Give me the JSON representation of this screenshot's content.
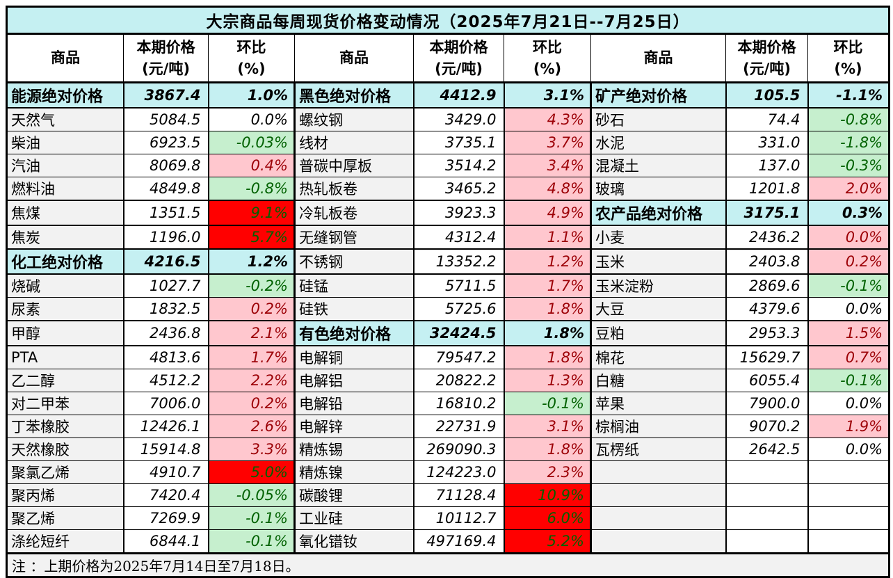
{
  "title": "大宗商品每周现货价格变动情况（2025年7月21日--7月25日）",
  "note": "注 ：上期价格为2025年7月14日至7月18日。",
  "columns": {
    "commodity": "商品",
    "price_line1": "本期价格",
    "price_line2": "(元/吨)",
    "pct_line1": "环比",
    "pct_line2": "(%)"
  },
  "colors": {
    "title_bg": "#c5f0f2",
    "section_bg": "#c5f0f2",
    "name_cell_bg": "#f2f2f2",
    "rise_bg": "#ffc7ce",
    "rise_text": "#9c0006",
    "fall_bg": "#c6efce",
    "fall_text": "#006100",
    "surge_bg": "#ff0000",
    "surge_text": "#006100",
    "border": "#000000"
  },
  "chart_data": {
    "type": "table",
    "title": "大宗商品每周现货价格变动情况（2025年7月21日--7月25日）",
    "columns": [
      "商品",
      "本期价格(元/吨)",
      "环比(%)"
    ],
    "note": "注 ：上期价格为2025年7月14日至7月18日。"
  },
  "groups": [
    {
      "rows": [
        {
          "name": "能源绝对价格",
          "price": "3867.4",
          "pct": "1.0%",
          "style": "section"
        },
        {
          "name": "天然气",
          "price": "5084.5",
          "pct": "0.0%",
          "style": "flat"
        },
        {
          "name": "柴油",
          "price": "6923.5",
          "pct": "-0.03%",
          "style": "down"
        },
        {
          "name": "汽油",
          "price": "8069.8",
          "pct": "0.4%",
          "style": "up"
        },
        {
          "name": "燃料油",
          "price": "4849.8",
          "pct": "-0.8%",
          "style": "down"
        },
        {
          "name": "焦煤",
          "price": "1351.5",
          "pct": "9.1%",
          "style": "hot"
        },
        {
          "name": "焦炭",
          "price": "1196.0",
          "pct": "5.7%",
          "style": "hot"
        },
        {
          "name": "化工绝对价格",
          "price": "4216.5",
          "pct": "1.2%",
          "style": "section"
        },
        {
          "name": "烧碱",
          "price": "1027.7",
          "pct": "-0.2%",
          "style": "down"
        },
        {
          "name": "尿素",
          "price": "1832.5",
          "pct": "0.2%",
          "style": "up"
        },
        {
          "name": "甲醇",
          "price": "2436.8",
          "pct": "2.1%",
          "style": "up"
        },
        {
          "name": "PTA",
          "price": "4813.6",
          "pct": "1.7%",
          "style": "up"
        },
        {
          "name": "乙二醇",
          "price": "4512.2",
          "pct": "2.2%",
          "style": "up"
        },
        {
          "name": "对二甲苯",
          "price": "7006.0",
          "pct": "0.2%",
          "style": "up"
        },
        {
          "name": "丁苯橡胶",
          "price": "12426.1",
          "pct": "2.6%",
          "style": "up"
        },
        {
          "name": "天然橡胶",
          "price": "15914.8",
          "pct": "3.3%",
          "style": "up"
        },
        {
          "name": "聚氯乙烯",
          "price": "4910.7",
          "pct": "5.0%",
          "style": "hot"
        },
        {
          "name": "聚丙烯",
          "price": "7420.4",
          "pct": "-0.05%",
          "style": "down"
        },
        {
          "name": "聚乙烯",
          "price": "7269.9",
          "pct": "-0.1%",
          "style": "down"
        },
        {
          "name": "涤纶短纤",
          "price": "6844.1",
          "pct": "-0.1%",
          "style": "down"
        }
      ]
    },
    {
      "rows": [
        {
          "name": "黑色绝对价格",
          "price": "4412.9",
          "pct": "3.1%",
          "style": "section"
        },
        {
          "name": "螺纹钢",
          "price": "3429.0",
          "pct": "4.3%",
          "style": "up"
        },
        {
          "name": "线材",
          "price": "3735.1",
          "pct": "3.7%",
          "style": "up"
        },
        {
          "name": "普碳中厚板",
          "price": "3514.2",
          "pct": "3.4%",
          "style": "up"
        },
        {
          "name": "热轧板卷",
          "price": "3465.2",
          "pct": "4.8%",
          "style": "up"
        },
        {
          "name": "冷轧板卷",
          "price": "3923.3",
          "pct": "4.9%",
          "style": "up"
        },
        {
          "name": "无缝钢管",
          "price": "4312.4",
          "pct": "1.1%",
          "style": "up"
        },
        {
          "name": "不锈钢",
          "price": "13352.2",
          "pct": "1.2%",
          "style": "up"
        },
        {
          "name": "硅锰",
          "price": "5711.5",
          "pct": "1.7%",
          "style": "up"
        },
        {
          "name": "硅铁",
          "price": "5725.6",
          "pct": "1.8%",
          "style": "up"
        },
        {
          "name": "有色绝对价格",
          "price": "32424.5",
          "pct": "1.8%",
          "style": "section"
        },
        {
          "name": "电解铜",
          "price": "79547.2",
          "pct": "1.8%",
          "style": "up"
        },
        {
          "name": "电解铝",
          "price": "20822.2",
          "pct": "1.3%",
          "style": "up"
        },
        {
          "name": "电解铅",
          "price": "16810.2",
          "pct": "-0.1%",
          "style": "down"
        },
        {
          "name": "电解锌",
          "price": "22731.9",
          "pct": "3.1%",
          "style": "up"
        },
        {
          "name": "精炼锡",
          "price": "269090.3",
          "pct": "1.8%",
          "style": "up"
        },
        {
          "name": "精炼镍",
          "price": "124223.0",
          "pct": "2.3%",
          "style": "up"
        },
        {
          "name": "碳酸锂",
          "price": "71128.4",
          "pct": "10.9%",
          "style": "hot"
        },
        {
          "name": "工业硅",
          "price": "10112.7",
          "pct": "6.0%",
          "style": "hot"
        },
        {
          "name": "氧化镨钕",
          "price": "497169.4",
          "pct": "5.2%",
          "style": "hot"
        }
      ]
    },
    {
      "rows": [
        {
          "name": "矿产绝对价格",
          "price": "105.5",
          "pct": "-1.1%",
          "style": "section"
        },
        {
          "name": "砂石",
          "price": "74.4",
          "pct": "-0.8%",
          "style": "down"
        },
        {
          "name": "水泥",
          "price": "331.0",
          "pct": "-1.8%",
          "style": "down"
        },
        {
          "name": "混凝土",
          "price": "137.0",
          "pct": "-0.3%",
          "style": "down"
        },
        {
          "name": "玻璃",
          "price": "1201.8",
          "pct": "2.0%",
          "style": "up"
        },
        {
          "name": "农产品绝对价格",
          "price": "3175.1",
          "pct": "0.3%",
          "style": "section"
        },
        {
          "name": "小麦",
          "price": "2436.2",
          "pct": "0.0%",
          "style": "up"
        },
        {
          "name": "玉米",
          "price": "2403.8",
          "pct": "0.2%",
          "style": "up"
        },
        {
          "name": "玉米淀粉",
          "price": "2869.6",
          "pct": "-0.1%",
          "style": "down"
        },
        {
          "name": "大豆",
          "price": "4379.6",
          "pct": "0.0%",
          "style": "flat"
        },
        {
          "name": "豆粕",
          "price": "2953.3",
          "pct": "1.5%",
          "style": "up"
        },
        {
          "name": "棉花",
          "price": "15629.7",
          "pct": "0.7%",
          "style": "up"
        },
        {
          "name": "白糖",
          "price": "6055.4",
          "pct": "-0.1%",
          "style": "down"
        },
        {
          "name": "苹果",
          "price": "7900.0",
          "pct": "0.0%",
          "style": "flat"
        },
        {
          "name": "棕榈油",
          "price": "9070.2",
          "pct": "1.9%",
          "style": "up"
        },
        {
          "name": "瓦楞纸",
          "price": "2642.5",
          "pct": "0.0%",
          "style": "flat"
        },
        {
          "name": "",
          "price": "",
          "pct": "",
          "style": "empty"
        },
        {
          "name": "",
          "price": "",
          "pct": "",
          "style": "empty"
        },
        {
          "name": "",
          "price": "",
          "pct": "",
          "style": "empty"
        },
        {
          "name": "",
          "price": "",
          "pct": "",
          "style": "empty"
        }
      ]
    }
  ]
}
